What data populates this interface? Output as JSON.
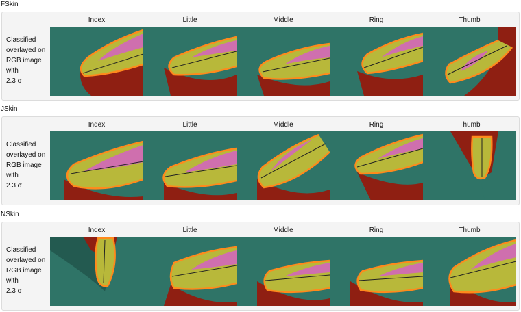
{
  "sections": [
    {
      "title": "FSkin",
      "row_label_lines": [
        "Classified",
        "overlayed on",
        "RGB image",
        "with",
        "2.3 σ"
      ],
      "columns": [
        "Index",
        "Little",
        "Middle",
        "Ring",
        "Thumb"
      ]
    },
    {
      "title": "JSkin",
      "row_label_lines": [
        "Classified",
        "overlayed on",
        "RGB image",
        "with",
        "2.3 σ"
      ],
      "columns": [
        "Index",
        "Little",
        "Middle",
        "Ring",
        "Thumb"
      ]
    },
    {
      "title": "NSkin",
      "row_label_lines": [
        "Classified",
        "overlayed on",
        "RGB image",
        "with",
        "2.3 σ"
      ],
      "columns": [
        "Index",
        "Little",
        "Middle",
        "Ring",
        "Thumb"
      ]
    }
  ],
  "colors": {
    "background_green": "#2f7467",
    "skin_red": "#8f1f12",
    "finger_yellow": "#b8b83a",
    "finger_pink": "#cf6fae",
    "outline_orange": "#ff8a1c"
  }
}
